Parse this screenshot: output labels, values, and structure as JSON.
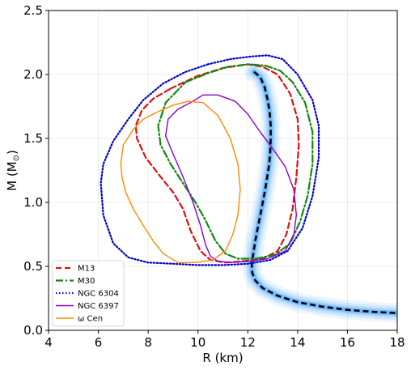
{
  "chart_data": {
    "type": "line",
    "title": "",
    "xlabel": "R (km)",
    "ylabel_main": "M (M",
    "ylabel_sub": "⊙",
    "ylabel_close": ")",
    "xlim": [
      4,
      18
    ],
    "ylim": [
      0.0,
      2.5
    ],
    "xticks": [
      4,
      6,
      8,
      10,
      12,
      14,
      16,
      18
    ],
    "yticks": [
      0.0,
      0.5,
      1.0,
      1.5,
      2.0,
      2.5
    ],
    "xtick_labels": [
      "4",
      "6",
      "8",
      "10",
      "12",
      "14",
      "16",
      "18"
    ],
    "ytick_labels": [
      "0.0",
      "0.5",
      "1.0",
      "1.5",
      "2.0",
      "2.5"
    ],
    "grid": true,
    "legend_position": "lower-left",
    "band": {
      "color": "#3399ff",
      "center": [
        [
          12.25,
          2.02
        ],
        [
          12.5,
          1.98
        ],
        [
          12.68,
          1.9
        ],
        [
          12.8,
          1.8
        ],
        [
          12.88,
          1.7
        ],
        [
          12.92,
          1.6
        ],
        [
          12.92,
          1.5
        ],
        [
          12.9,
          1.4
        ],
        [
          12.86,
          1.3
        ],
        [
          12.78,
          1.2
        ],
        [
          12.7,
          1.1
        ],
        [
          12.6,
          1.0
        ],
        [
          12.5,
          0.9
        ],
        [
          12.4,
          0.8
        ],
        [
          12.3,
          0.7
        ],
        [
          12.22,
          0.6
        ],
        [
          12.16,
          0.52
        ],
        [
          12.18,
          0.45
        ],
        [
          12.3,
          0.39
        ],
        [
          12.6,
          0.33
        ],
        [
          13.2,
          0.27
        ],
        [
          14.0,
          0.22
        ],
        [
          15.0,
          0.185
        ],
        [
          16.0,
          0.16
        ],
        [
          17.0,
          0.145
        ],
        [
          18.0,
          0.135
        ]
      ]
    },
    "series": [
      {
        "name": "M13",
        "color": "#dd1111",
        "dash": "dashed",
        "points": [
          [
            8.9,
            1.89
          ],
          [
            10.0,
            1.99
          ],
          [
            11.0,
            2.05
          ],
          [
            12.0,
            2.08
          ],
          [
            12.6,
            2.06
          ],
          [
            13.2,
            2.0
          ],
          [
            13.7,
            1.85
          ],
          [
            14.0,
            1.65
          ],
          [
            14.05,
            1.45
          ],
          [
            13.95,
            1.2
          ],
          [
            13.8,
            0.95
          ],
          [
            13.55,
            0.75
          ],
          [
            13.2,
            0.62
          ],
          [
            12.6,
            0.56
          ],
          [
            11.8,
            0.54
          ],
          [
            11.1,
            0.53
          ],
          [
            10.5,
            0.55
          ],
          [
            10.1,
            0.62
          ],
          [
            9.7,
            0.78
          ],
          [
            9.4,
            0.95
          ],
          [
            9.0,
            1.08
          ],
          [
            8.5,
            1.2
          ],
          [
            7.9,
            1.35
          ],
          [
            7.55,
            1.5
          ],
          [
            7.5,
            1.6
          ],
          [
            7.75,
            1.72
          ],
          [
            8.2,
            1.81
          ],
          [
            8.9,
            1.89
          ]
        ]
      },
      {
        "name": "M30",
        "color": "#118811",
        "dash": "dashdot",
        "points": [
          [
            9.5,
            1.94
          ],
          [
            10.4,
            2.01
          ],
          [
            11.2,
            2.06
          ],
          [
            12.0,
            2.08
          ],
          [
            12.7,
            2.07
          ],
          [
            13.3,
            2.03
          ],
          [
            13.8,
            1.94
          ],
          [
            14.3,
            1.78
          ],
          [
            14.6,
            1.55
          ],
          [
            14.6,
            1.3
          ],
          [
            14.4,
            1.05
          ],
          [
            14.1,
            0.85
          ],
          [
            13.7,
            0.68
          ],
          [
            13.1,
            0.59
          ],
          [
            12.3,
            0.56
          ],
          [
            11.6,
            0.56
          ],
          [
            11.1,
            0.6
          ],
          [
            10.7,
            0.7
          ],
          [
            10.3,
            0.86
          ],
          [
            9.9,
            1.0
          ],
          [
            9.4,
            1.15
          ],
          [
            8.9,
            1.3
          ],
          [
            8.5,
            1.45
          ],
          [
            8.4,
            1.6
          ],
          [
            8.7,
            1.78
          ],
          [
            9.5,
            1.94
          ]
        ]
      },
      {
        "name": "NGC 6304",
        "color": "#0000cc",
        "dash": "dotted",
        "points": [
          [
            10.4,
            2.08
          ],
          [
            11.3,
            2.12
          ],
          [
            12.1,
            2.14
          ],
          [
            12.8,
            2.15
          ],
          [
            13.4,
            2.12
          ],
          [
            14.0,
            2.0
          ],
          [
            14.6,
            1.8
          ],
          [
            14.85,
            1.6
          ],
          [
            14.85,
            1.35
          ],
          [
            14.6,
            1.05
          ],
          [
            14.2,
            0.8
          ],
          [
            13.6,
            0.62
          ],
          [
            12.9,
            0.55
          ],
          [
            12.0,
            0.52
          ],
          [
            11.0,
            0.51
          ],
          [
            10.0,
            0.51
          ],
          [
            9.0,
            0.52
          ],
          [
            8.0,
            0.53
          ],
          [
            7.2,
            0.57
          ],
          [
            6.6,
            0.68
          ],
          [
            6.2,
            0.9
          ],
          [
            6.1,
            1.15
          ],
          [
            6.2,
            1.3
          ],
          [
            6.6,
            1.48
          ],
          [
            7.2,
            1.65
          ],
          [
            7.8,
            1.8
          ],
          [
            8.6,
            1.93
          ],
          [
            9.5,
            2.02
          ],
          [
            10.4,
            2.08
          ]
        ]
      },
      {
        "name": "NGC 6397",
        "color": "#8800cc",
        "dash": "solid",
        "points": [
          [
            9.7,
            1.78
          ],
          [
            10.2,
            1.84
          ],
          [
            10.8,
            1.84
          ],
          [
            11.5,
            1.79
          ],
          [
            12.0,
            1.69
          ],
          [
            12.5,
            1.55
          ],
          [
            13.0,
            1.42
          ],
          [
            13.5,
            1.28
          ],
          [
            13.85,
            1.1
          ],
          [
            13.95,
            0.9
          ],
          [
            13.85,
            0.75
          ],
          [
            13.5,
            0.62
          ],
          [
            12.8,
            0.56
          ],
          [
            12.1,
            0.54
          ],
          [
            11.3,
            0.53
          ],
          [
            10.8,
            0.54
          ],
          [
            10.5,
            0.58
          ],
          [
            10.3,
            0.67
          ],
          [
            10.1,
            0.82
          ],
          [
            9.8,
            1.0
          ],
          [
            9.4,
            1.2
          ],
          [
            9.0,
            1.38
          ],
          [
            8.7,
            1.52
          ],
          [
            8.8,
            1.65
          ],
          [
            9.2,
            1.73
          ],
          [
            9.7,
            1.78
          ]
        ]
      },
      {
        "name": "ω Cen",
        "color": "#ff8800",
        "dash": "solid",
        "points": [
          [
            8.3,
            1.7
          ],
          [
            9.0,
            1.76
          ],
          [
            9.6,
            1.79
          ],
          [
            10.2,
            1.78
          ],
          [
            10.8,
            1.68
          ],
          [
            11.3,
            1.5
          ],
          [
            11.6,
            1.3
          ],
          [
            11.7,
            1.1
          ],
          [
            11.6,
            0.9
          ],
          [
            11.4,
            0.75
          ],
          [
            11.1,
            0.62
          ],
          [
            10.6,
            0.55
          ],
          [
            9.9,
            0.53
          ],
          [
            9.2,
            0.53
          ],
          [
            8.6,
            0.6
          ],
          [
            8.2,
            0.7
          ],
          [
            7.8,
            0.82
          ],
          [
            7.4,
            0.95
          ],
          [
            7.1,
            1.08
          ],
          [
            6.95,
            1.2
          ],
          [
            6.9,
            1.3
          ],
          [
            7.0,
            1.45
          ],
          [
            7.4,
            1.57
          ],
          [
            7.8,
            1.65
          ],
          [
            8.3,
            1.7
          ]
        ]
      }
    ]
  }
}
